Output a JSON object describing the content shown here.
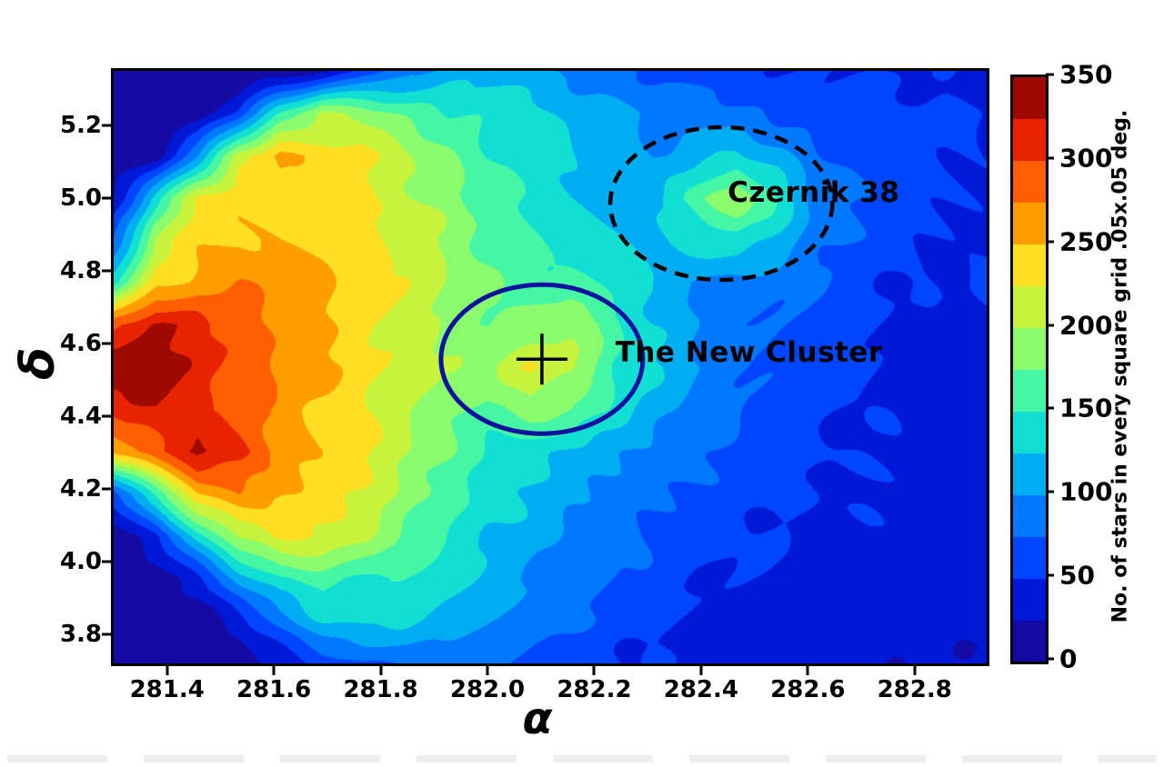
{
  "figure": {
    "xlabel": "α",
    "ylabel": "δ",
    "background_color": "#ffffff",
    "annotations": [
      {
        "label": "Czernik 38"
      },
      {
        "label": "The New Cluster"
      }
    ],
    "colorbar_title": "No. of stars in every square grid .05x.05 deg."
  },
  "chart_data": {
    "type": "heatmap",
    "subtype": "filled-contour-density-map",
    "title": "",
    "xlabel": "α",
    "ylabel": "δ",
    "x_range": [
      281.3,
      282.935
    ],
    "y_range": [
      3.72,
      5.35
    ],
    "x_ticks": [
      281.4,
      281.6,
      281.8,
      282.0,
      282.2,
      282.4,
      282.6,
      282.8
    ],
    "y_ticks": [
      5.2,
      5.0,
      4.8,
      4.6,
      4.4,
      4.2,
      4.0,
      3.8
    ],
    "grid_on": false,
    "colorbar": {
      "label": "No. of stars in every square grid .05x.05 deg.",
      "range": [
        0,
        350
      ],
      "ticks": [
        0,
        50,
        100,
        150,
        200,
        250,
        300,
        350
      ],
      "level_step": 25,
      "palette": [
        "#140ba4",
        "#0019d9",
        "#0045ff",
        "#0078ff",
        "#00adf2",
        "#12dfd4",
        "#45f6a5",
        "#8bfb6e",
        "#c6f43c",
        "#ffdf22",
        "#ff9e00",
        "#ff5f00",
        "#e82400",
        "#9e0a00"
      ]
    },
    "grid": {
      "x_values": [
        281.3,
        281.38,
        281.46,
        281.53,
        281.61,
        281.69,
        281.77,
        281.84,
        281.92,
        282.0,
        282.08,
        282.16,
        282.23,
        282.31,
        282.39,
        282.47,
        282.55,
        282.62,
        282.7,
        282.78,
        282.86,
        282.94
      ],
      "y_values": [
        5.35,
        5.23,
        5.12,
        5.0,
        4.88,
        4.77,
        4.65,
        4.54,
        4.42,
        4.3,
        4.19,
        4.07,
        3.95,
        3.84,
        3.72
      ],
      "counts": [
        [
          5,
          5,
          5,
          5,
          8,
          20,
          60,
          90,
          110,
          115,
          105,
          95,
          85,
          75,
          65,
          60,
          55,
          50,
          48,
          45,
          42,
          40
        ],
        [
          5,
          5,
          10,
          60,
          150,
          205,
          190,
          170,
          150,
          140,
          130,
          120,
          110,
          100,
          95,
          90,
          75,
          65,
          60,
          55,
          50,
          45
        ],
        [
          5,
          15,
          100,
          220,
          265,
          240,
          225,
          200,
          175,
          150,
          135,
          125,
          115,
          105,
          120,
          130,
          110,
          80,
          65,
          58,
          50,
          45
        ],
        [
          30,
          140,
          230,
          250,
          245,
          235,
          225,
          205,
          185,
          160,
          140,
          130,
          120,
          125,
          160,
          210,
          150,
          90,
          70,
          60,
          52,
          46
        ],
        [
          80,
          200,
          245,
          255,
          250,
          245,
          235,
          215,
          195,
          170,
          150,
          140,
          130,
          120,
          135,
          145,
          120,
          85,
          68,
          58,
          50,
          45
        ],
        [
          140,
          235,
          260,
          270,
          265,
          255,
          240,
          225,
          200,
          180,
          165,
          155,
          140,
          115,
          100,
          90,
          80,
          70,
          60,
          52,
          46,
          55
        ],
        [
          290,
          320,
          310,
          285,
          265,
          250,
          235,
          220,
          195,
          175,
          185,
          200,
          160,
          120,
          95,
          80,
          70,
          62,
          55,
          50,
          45,
          55
        ],
        [
          340,
          330,
          315,
          290,
          270,
          255,
          240,
          225,
          205,
          195,
          230,
          210,
          150,
          125,
          95,
          80,
          68,
          60,
          52,
          48,
          44,
          40
        ],
        [
          310,
          320,
          300,
          280,
          265,
          245,
          230,
          210,
          185,
          170,
          190,
          175,
          140,
          110,
          85,
          72,
          62,
          55,
          50,
          46,
          42,
          38
        ],
        [
          250,
          290,
          330,
          310,
          270,
          250,
          230,
          205,
          175,
          150,
          135,
          120,
          110,
          95,
          78,
          65,
          58,
          52,
          48,
          44,
          40,
          36
        ],
        [
          60,
          160,
          250,
          275,
          260,
          240,
          220,
          190,
          160,
          135,
          120,
          105,
          95,
          85,
          72,
          62,
          55,
          50,
          45,
          42,
          38,
          35
        ],
        [
          15,
          50,
          140,
          210,
          235,
          225,
          200,
          170,
          145,
          125,
          110,
          95,
          85,
          75,
          65,
          58,
          52,
          46,
          42,
          40,
          36,
          33
        ],
        [
          5,
          15,
          50,
          110,
          150,
          160,
          150,
          140,
          125,
          110,
          100,
          88,
          78,
          68,
          60,
          52,
          46,
          42,
          38,
          36,
          33,
          30
        ],
        [
          5,
          5,
          12,
          35,
          90,
          125,
          135,
          125,
          100,
          92,
          85,
          75,
          66,
          58,
          52,
          46,
          42,
          38,
          35,
          33,
          30,
          28
        ],
        [
          5,
          5,
          5,
          12,
          30,
          55,
          75,
          80,
          78,
          72,
          66,
          60,
          54,
          48,
          44,
          40,
          36,
          34,
          32,
          30,
          28,
          26
        ]
      ]
    },
    "features": [
      {
        "name": "Czernik 38",
        "alpha": 282.438,
        "delta": 4.985,
        "r_alpha": 0.208,
        "r_delta": 0.21,
        "outline": "dashed-black-ellipse",
        "outline_color": "#000000",
        "label_alpha": 282.611,
        "label_delta": 5.015
      },
      {
        "name": "The New Cluster",
        "alpha": 282.102,
        "delta": 4.557,
        "r_alpha": 0.189,
        "r_delta": 0.205,
        "outline": "solid-navy-ellipse",
        "outline_color": "#0b129e",
        "marker": "plus-cross",
        "marker_color": "#000000",
        "label_alpha": 282.49,
        "label_delta": 4.575
      }
    ]
  }
}
